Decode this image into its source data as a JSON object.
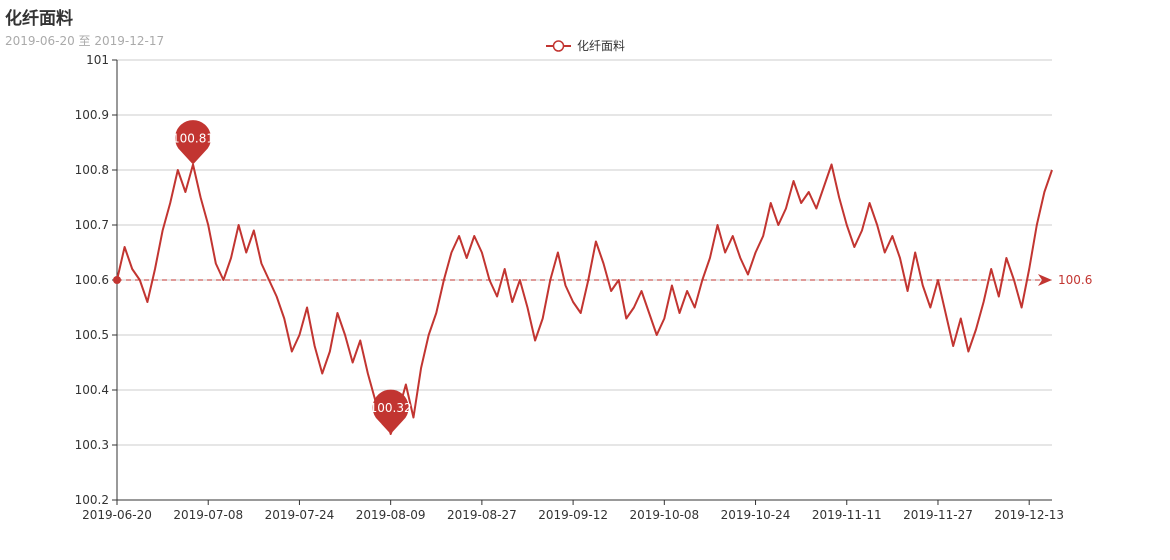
{
  "chart_data": {
    "type": "line",
    "title": "化纤面料",
    "subtitle": "2019-06-20 至 2019-12-17",
    "legend": {
      "label": "化纤面料",
      "position": "top-center"
    },
    "colors": {
      "series": "#c23531",
      "grid": "#cccccc",
      "axis": "#333333",
      "text": "#333333",
      "subtitle": "#aaaaaa"
    },
    "ylim": [
      100.2,
      101
    ],
    "yticks": [
      "100.2",
      "100.3",
      "100.4",
      "100.5",
      "100.6",
      "100.7",
      "100.8",
      "100.9",
      "101"
    ],
    "xticks": [
      "2019-06-20",
      "2019-07-08",
      "2019-07-24",
      "2019-08-09",
      "2019-08-27",
      "2019-09-12",
      "2019-10-08",
      "2019-10-24",
      "2019-11-11",
      "2019-11-27",
      "2019-12-13"
    ],
    "grid": true,
    "series": [
      {
        "name": "化纤面料",
        "values": [
          100.6,
          100.66,
          100.62,
          100.6,
          100.56,
          100.62,
          100.69,
          100.74,
          100.8,
          100.76,
          100.81,
          100.75,
          100.7,
          100.63,
          100.6,
          100.64,
          100.7,
          100.65,
          100.69,
          100.63,
          100.6,
          100.57,
          100.53,
          100.47,
          100.5,
          100.55,
          100.48,
          100.43,
          100.47,
          100.54,
          100.5,
          100.45,
          100.49,
          100.43,
          100.38,
          100.38,
          100.32,
          100.36,
          100.41,
          100.35,
          100.44,
          100.5,
          100.54,
          100.6,
          100.65,
          100.68,
          100.64,
          100.68,
          100.65,
          100.6,
          100.57,
          100.62,
          100.56,
          100.6,
          100.55,
          100.49,
          100.53,
          100.6,
          100.65,
          100.59,
          100.56,
          100.54,
          100.6,
          100.67,
          100.63,
          100.58,
          100.6,
          100.53,
          100.55,
          100.58,
          100.54,
          100.5,
          100.53,
          100.59,
          100.54,
          100.58,
          100.55,
          100.6,
          100.64,
          100.7,
          100.65,
          100.68,
          100.64,
          100.61,
          100.65,
          100.68,
          100.74,
          100.7,
          100.73,
          100.78,
          100.74,
          100.76,
          100.73,
          100.77,
          100.81,
          100.75,
          100.7,
          100.66,
          100.69,
          100.74,
          100.7,
          100.65,
          100.68,
          100.64,
          100.58,
          100.65,
          100.59,
          100.55,
          100.6,
          100.54,
          100.48,
          100.53,
          100.47,
          100.51,
          100.56,
          100.62,
          100.57,
          100.64,
          100.6,
          100.55,
          100.62,
          100.7,
          100.76,
          100.8
        ]
      }
    ],
    "mark_points": [
      {
        "label": "100.81",
        "value": 100.81,
        "kind": "max",
        "index": 10
      },
      {
        "label": "100.32",
        "value": 100.32,
        "kind": "min",
        "index": 36
      }
    ],
    "mark_line": {
      "label": "100.6",
      "value": 100.6,
      "kind": "average"
    }
  }
}
